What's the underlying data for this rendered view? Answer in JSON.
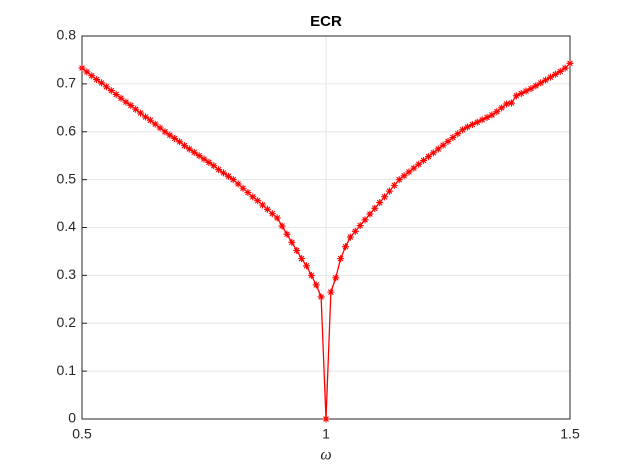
{
  "chart_data": {
    "type": "line",
    "title": "ECR",
    "x_label": "ω",
    "x": [
      0.5,
      0.51,
      0.52,
      0.53,
      0.54,
      0.55,
      0.56,
      0.57,
      0.58,
      0.59,
      0.6,
      0.61,
      0.62,
      0.63,
      0.64,
      0.65,
      0.66,
      0.67,
      0.68,
      0.69,
      0.7,
      0.71,
      0.72,
      0.73,
      0.74,
      0.75,
      0.76,
      0.77,
      0.78,
      0.79,
      0.8,
      0.81,
      0.82,
      0.83,
      0.84,
      0.85,
      0.86,
      0.87,
      0.88,
      0.89,
      0.9,
      0.91,
      0.92,
      0.93,
      0.94,
      0.95,
      0.96,
      0.97,
      0.98,
      0.99,
      1.0,
      1.01,
      1.02,
      1.03,
      1.04,
      1.05,
      1.06,
      1.07,
      1.08,
      1.09,
      1.1,
      1.11,
      1.12,
      1.13,
      1.14,
      1.15,
      1.16,
      1.17,
      1.18,
      1.19,
      1.2,
      1.21,
      1.22,
      1.23,
      1.24,
      1.25,
      1.26,
      1.27,
      1.28,
      1.29,
      1.3,
      1.31,
      1.32,
      1.33,
      1.34,
      1.35,
      1.36,
      1.37,
      1.38,
      1.39,
      1.4,
      1.41,
      1.42,
      1.43,
      1.44,
      1.45,
      1.46,
      1.47,
      1.48,
      1.49,
      1.5
    ],
    "series": [
      {
        "name": "ECR",
        "color": "#ff0000",
        "values": [
          0.733,
          0.725,
          0.717,
          0.709,
          0.702,
          0.694,
          0.686,
          0.678,
          0.67,
          0.662,
          0.655,
          0.647,
          0.639,
          0.631,
          0.624,
          0.616,
          0.608,
          0.6,
          0.593,
          0.586,
          0.579,
          0.571,
          0.564,
          0.557,
          0.55,
          0.543,
          0.536,
          0.529,
          0.521,
          0.514,
          0.507,
          0.5,
          0.491,
          0.482,
          0.473,
          0.464,
          0.456,
          0.447,
          0.438,
          0.429,
          0.42,
          0.403,
          0.386,
          0.369,
          0.352,
          0.335,
          0.32,
          0.3,
          0.28,
          0.255,
          0,
          0.265,
          0.295,
          0.335,
          0.36,
          0.38,
          0.392,
          0.404,
          0.416,
          0.428,
          0.44,
          0.452,
          0.464,
          0.476,
          0.488,
          0.5,
          0.508,
          0.516,
          0.524,
          0.532,
          0.54,
          0.548,
          0.556,
          0.564,
          0.572,
          0.58,
          0.588,
          0.596,
          0.604,
          0.61,
          0.615,
          0.62,
          0.625,
          0.63,
          0.635,
          0.642,
          0.65,
          0.658,
          0.66,
          0.675,
          0.68,
          0.685,
          0.69,
          0.696,
          0.702,
          0.708,
          0.714,
          0.72,
          0.726,
          0.733,
          0.743
        ]
      }
    ],
    "xlim": [
      0.5,
      1.5
    ],
    "xticks": [
      0.5,
      1,
      1.5
    ],
    "ylim": [
      0,
      0.8
    ],
    "yticks": [
      0,
      0.1,
      0.2,
      0.3,
      0.4,
      0.5,
      0.6,
      0.7,
      0.8
    ],
    "grid": true
  }
}
